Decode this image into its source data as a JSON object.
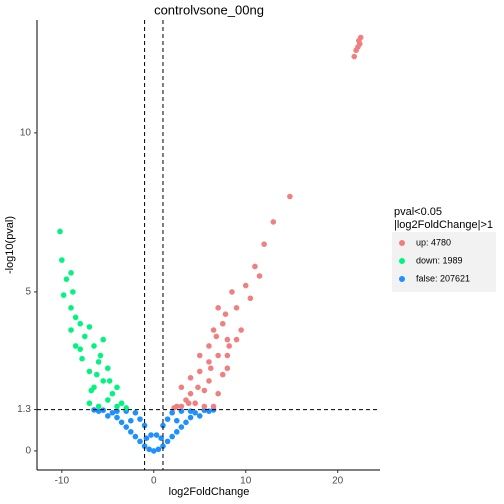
{
  "chart_data": {
    "type": "scatter",
    "title": "controlvsone_00ng",
    "x_label": "log2FoldChange",
    "y_label": "-log10(pval)",
    "xlim": [
      -12.7,
      24.6
    ],
    "ylim": [
      -0.6,
      13.55
    ],
    "xticks": [
      -10,
      0,
      10,
      20
    ],
    "yticks": [
      0,
      1.3,
      5,
      10
    ],
    "thresholds": {
      "x": [
        -1,
        1
      ],
      "y": 1.3
    },
    "legend_title": [
      "pval<0.05",
      "|log2FoldChange|>1"
    ],
    "legend_position": "right",
    "series": [
      {
        "name": "up: 4780",
        "color": "#F08080",
        "x": [
          2.5,
          3.5,
          4.5,
          5.5,
          6.5,
          3,
          4,
          5,
          6,
          7,
          5,
          6,
          7,
          8,
          6.5,
          7.5,
          8,
          9,
          10,
          11,
          12,
          13,
          14.8,
          7,
          8.5,
          9.5,
          6,
          4,
          3,
          8,
          7.5,
          9,
          5.5,
          6.8,
          7.8,
          8.2,
          4.8,
          3.8,
          2.2,
          6.2,
          10.5,
          11.5,
          22.5,
          22.3,
          22.0,
          21.8,
          22.2,
          22.4
        ],
        "y": [
          1.4,
          1.6,
          1.5,
          1.4,
          1.4,
          2.0,
          2.3,
          2.5,
          2.2,
          1.8,
          3.0,
          3.3,
          3.0,
          2.6,
          3.8,
          4.0,
          3.5,
          4.5,
          5.2,
          5.8,
          6.5,
          7.2,
          8.0,
          4.5,
          5.0,
          3.8,
          2.8,
          1.8,
          1.4,
          3.0,
          2.4,
          3.5,
          1.9,
          3.6,
          4.3,
          3.3,
          2.0,
          1.5,
          1.35,
          2.6,
          4.8,
          5.5,
          13.0,
          12.9,
          12.6,
          12.4,
          12.7,
          12.8
        ]
      },
      {
        "name": "down: 1989",
        "color": "#00F57F",
        "x": [
          -6,
          -5,
          -4,
          -3,
          -7,
          -6.5,
          -5.5,
          -4.5,
          -7,
          -6,
          -8,
          -7.5,
          -8.5,
          -9,
          -9.5,
          -9,
          -10,
          -10.2,
          -8,
          -6.5,
          -5.5,
          -7,
          -8.5,
          -9,
          -5,
          -4,
          -3.5,
          -6.8,
          -7.8,
          -9.8,
          -8.8,
          -6.2,
          -5.8,
          -4.8
        ],
        "y": [
          1.4,
          1.6,
          1.4,
          1.35,
          1.5,
          2.0,
          2.2,
          1.8,
          2.5,
          2.8,
          3.2,
          3.6,
          4.2,
          4.5,
          5.4,
          5.6,
          6.0,
          6.9,
          4.0,
          3.3,
          3.5,
          3.9,
          3.3,
          3.8,
          2.6,
          2.0,
          1.5,
          1.9,
          2.9,
          4.9,
          5.0,
          2.4,
          3.0,
          2.2
        ]
      },
      {
        "name": "false: 207621",
        "color": "#1E90FF",
        "x": [
          0,
          -0.5,
          0.5,
          -1,
          1,
          -1.5,
          1.5,
          -2,
          2,
          -2.5,
          2.5,
          -3,
          3,
          -3.5,
          3.5,
          -4,
          4,
          -4.5,
          4.5,
          -2,
          2,
          -3,
          3,
          -1,
          1,
          -0.3,
          0.3,
          -1.5,
          1.5,
          -5.5,
          5.5,
          -5,
          5,
          -6,
          6,
          -4,
          4,
          -2.5,
          2.5,
          -6.5,
          6.5,
          -0.8,
          0.8
        ],
        "y": [
          0,
          0.05,
          0.05,
          0.15,
          0.15,
          0.3,
          0.3,
          0.45,
          0.45,
          0.6,
          0.6,
          0.75,
          0.75,
          0.9,
          0.9,
          1.05,
          1.05,
          1.2,
          1.2,
          1.2,
          1.2,
          1.25,
          1.25,
          0.8,
          0.8,
          0.5,
          0.5,
          1.0,
          1.0,
          1.28,
          1.28,
          1.1,
          1.1,
          1.25,
          1.25,
          1.25,
          1.25,
          0.95,
          0.95,
          1.29,
          1.29,
          0.4,
          0.4
        ]
      }
    ]
  }
}
